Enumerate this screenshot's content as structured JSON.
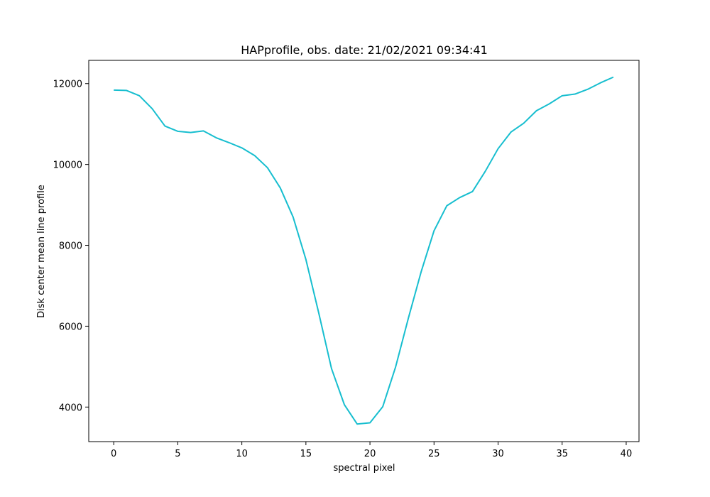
{
  "chart_data": {
    "type": "line",
    "title": "HAPprofile, obs. date: 21/02/2021 09:34:41",
    "xlabel": "spectral pixel",
    "ylabel": "Disk center mean line profile",
    "xlim": [
      -1.95,
      41.0
    ],
    "ylim": [
      3145,
      12575
    ],
    "xticks": [
      0,
      5,
      10,
      15,
      20,
      25,
      30,
      35,
      40
    ],
    "yticks": [
      4000,
      6000,
      8000,
      10000,
      12000
    ],
    "grid": false,
    "legend": "none",
    "series": [
      {
        "color": "#17becf",
        "x": [
          0,
          1,
          2,
          3,
          4,
          5,
          6,
          7,
          8,
          9,
          10,
          11,
          12,
          13,
          14,
          15,
          16,
          17,
          18,
          19,
          20,
          21,
          22,
          23,
          24,
          25,
          26,
          27,
          28,
          29,
          30,
          31,
          32,
          33,
          34,
          35,
          36,
          37,
          38,
          39
        ],
        "y": [
          11840,
          11830,
          11700,
          11380,
          10950,
          10820,
          10790,
          10830,
          10660,
          10540,
          10410,
          10220,
          9920,
          9420,
          8700,
          7650,
          6330,
          4950,
          4060,
          3580,
          3610,
          4010,
          4990,
          6200,
          7350,
          8360,
          8980,
          9180,
          9330,
          9830,
          10390,
          10800,
          11020,
          11330,
          11500,
          11700,
          11740,
          11860,
          12020,
          12160
        ]
      }
    ]
  }
}
